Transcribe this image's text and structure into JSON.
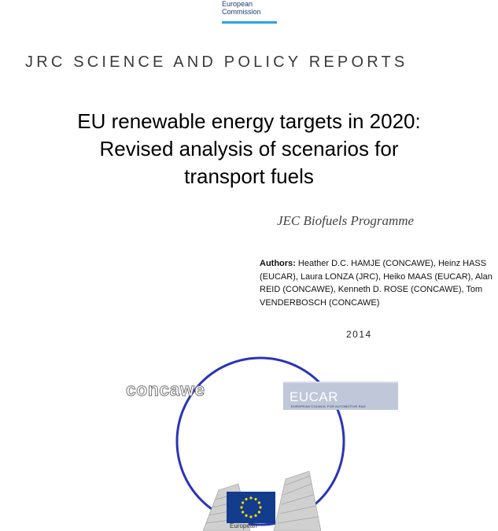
{
  "header_logo": {
    "line1": "European",
    "line2": "Commission"
  },
  "series": "JRC SCIENCE AND POLICY REPORTS",
  "title": {
    "line1": "EU renewable energy targets in 2020:",
    "line2": "Revised analysis of scenarios for",
    "line3": "transport fuels"
  },
  "programme": "JEC Biofuels Programme",
  "authors": {
    "label": "Authors:",
    "text": " Heather D.C. HAMJE (CONCAWE), Heinz HASS (EUCAR), Laura LONZA (JRC), Heiko MAAS (EUCAR), Alan REID (CONCAWE), Kenneth D. ROSE (CONCAWE), Tom VENDERBOSCH (CONCAWE)"
  },
  "year": "2014",
  "logos": {
    "concawe": "concawe",
    "eucar": "EUCAR",
    "eucar_sub": "EUROPEAN COUNCIL FOR AUTOMOTIVE R&D",
    "ec_bottom": "European"
  },
  "colors": {
    "ring": "#2a34b8",
    "eu_flag": "#143c8c",
    "ec_bar": "#29a3d8"
  }
}
